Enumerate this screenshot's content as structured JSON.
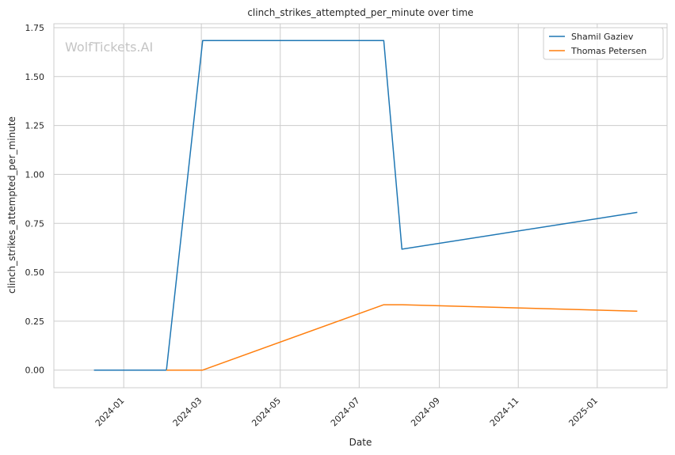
{
  "chart_data": {
    "type": "line",
    "title": "clinch_strikes_attempted_per_minute over time",
    "xlabel": "Date",
    "ylabel": "clinch_strikes_attempted_per_minute",
    "watermark": "WolfTickets.AI",
    "grid": true,
    "legend_position": "top-right",
    "x_ticks": [
      "2024-01",
      "2024-03",
      "2024-05",
      "2024-07",
      "2024-09",
      "2024-11",
      "2025-01"
    ],
    "y_ticks": [
      "0.00",
      "0.25",
      "0.50",
      "0.75",
      "1.00",
      "1.25",
      "1.50",
      "1.75"
    ],
    "xlim": [
      "2023-11-08",
      "2025-02-24"
    ],
    "ylim": [
      -0.09,
      1.77
    ],
    "series": [
      {
        "name": "Shamil Gaziev",
        "color": "#1f77b4",
        "points": [
          {
            "x": "2023-12-09",
            "y": 0.0
          },
          {
            "x": "2024-02-03",
            "y": 0.0
          },
          {
            "x": "2024-03-02",
            "y": 1.684
          },
          {
            "x": "2024-07-20",
            "y": 1.684
          },
          {
            "x": "2024-08-03",
            "y": 0.618
          },
          {
            "x": "2025-02-01",
            "y": 0.806
          }
        ]
      },
      {
        "name": "Thomas Petersen",
        "color": "#ff7f0e",
        "points": [
          {
            "x": "2024-02-03",
            "y": 0.0
          },
          {
            "x": "2024-03-02",
            "y": 0.0
          },
          {
            "x": "2024-07-20",
            "y": 0.334
          },
          {
            "x": "2024-08-03",
            "y": 0.334
          },
          {
            "x": "2025-02-01",
            "y": 0.301
          }
        ]
      }
    ]
  }
}
